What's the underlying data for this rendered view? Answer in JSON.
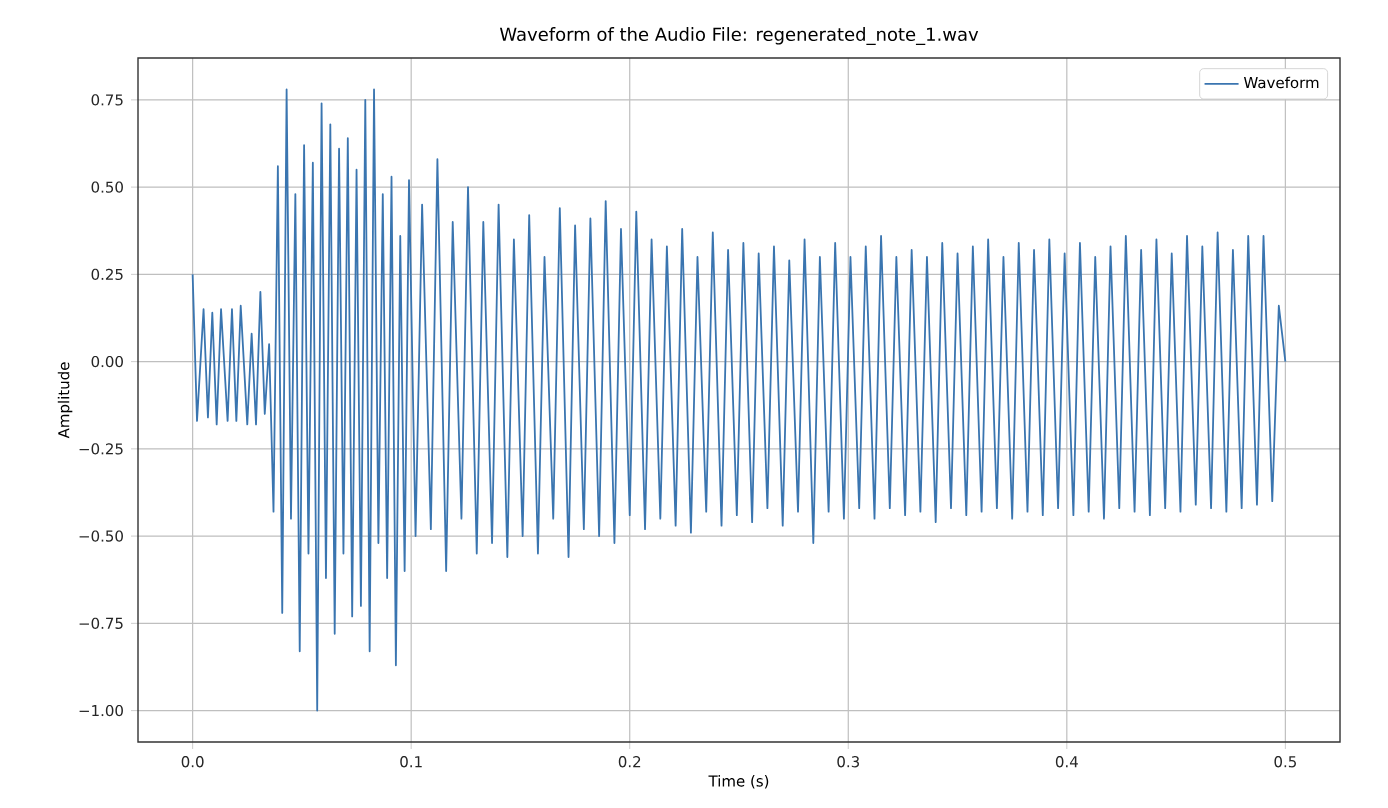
{
  "chart_data": {
    "type": "line",
    "title": "Waveform of the Audio File: regenerated_note_1.wav",
    "xlabel": "Time (s)",
    "ylabel": "Amplitude",
    "series": [
      {
        "name": "Waveform",
        "color": "#3a75b0",
        "x": [
          0.0,
          0.002,
          0.005,
          0.007,
          0.009,
          0.011,
          0.013,
          0.016,
          0.018,
          0.02,
          0.022,
          0.025,
          0.027,
          0.029,
          0.031,
          0.033,
          0.035,
          0.037,
          0.039,
          0.041,
          0.043,
          0.045,
          0.047,
          0.049,
          0.051,
          0.053,
          0.055,
          0.057,
          0.059,
          0.061,
          0.063,
          0.065,
          0.067,
          0.069,
          0.071,
          0.073,
          0.075,
          0.077,
          0.079,
          0.081,
          0.083,
          0.085,
          0.087,
          0.089,
          0.091,
          0.093,
          0.095,
          0.097,
          0.099,
          0.102,
          0.105,
          0.109,
          0.112,
          0.116,
          0.119,
          0.123,
          0.126,
          0.13,
          0.133,
          0.137,
          0.14,
          0.144,
          0.147,
          0.151,
          0.154,
          0.158,
          0.161,
          0.165,
          0.168,
          0.172,
          0.175,
          0.179,
          0.182,
          0.186,
          0.189,
          0.193,
          0.196,
          0.2,
          0.203,
          0.207,
          0.21,
          0.214,
          0.217,
          0.221,
          0.224,
          0.228,
          0.231,
          0.235,
          0.238,
          0.242,
          0.245,
          0.249,
          0.252,
          0.256,
          0.259,
          0.263,
          0.266,
          0.27,
          0.273,
          0.277,
          0.28,
          0.284,
          0.287,
          0.291,
          0.294,
          0.298,
          0.301,
          0.305,
          0.308,
          0.312,
          0.315,
          0.319,
          0.322,
          0.326,
          0.329,
          0.333,
          0.336,
          0.34,
          0.343,
          0.347,
          0.35,
          0.354,
          0.357,
          0.361,
          0.364,
          0.368,
          0.371,
          0.375,
          0.378,
          0.382,
          0.385,
          0.389,
          0.392,
          0.396,
          0.399,
          0.403,
          0.406,
          0.41,
          0.413,
          0.417,
          0.42,
          0.424,
          0.427,
          0.431,
          0.434,
          0.438,
          0.441,
          0.445,
          0.448,
          0.452,
          0.455,
          0.459,
          0.462,
          0.466,
          0.469,
          0.473,
          0.476,
          0.48,
          0.483,
          0.487,
          0.49,
          0.494,
          0.497,
          0.5
        ],
        "values": [
          0.25,
          -0.17,
          0.15,
          -0.16,
          0.14,
          -0.18,
          0.15,
          -0.17,
          0.15,
          -0.17,
          0.16,
          -0.18,
          0.08,
          -0.18,
          0.2,
          -0.15,
          0.05,
          -0.43,
          0.56,
          -0.72,
          0.78,
          -0.45,
          0.48,
          -0.83,
          0.62,
          -0.55,
          0.57,
          -1.0,
          0.74,
          -0.62,
          0.68,
          -0.78,
          0.61,
          -0.55,
          0.64,
          -0.73,
          0.55,
          -0.7,
          0.75,
          -0.83,
          0.78,
          -0.52,
          0.48,
          -0.62,
          0.53,
          -0.87,
          0.36,
          -0.6,
          0.52,
          -0.5,
          0.45,
          -0.48,
          0.58,
          -0.6,
          0.4,
          -0.45,
          0.5,
          -0.55,
          0.4,
          -0.52,
          0.45,
          -0.56,
          0.35,
          -0.5,
          0.42,
          -0.55,
          0.3,
          -0.45,
          0.44,
          -0.56,
          0.39,
          -0.48,
          0.41,
          -0.5,
          0.46,
          -0.52,
          0.38,
          -0.44,
          0.43,
          -0.48,
          0.35,
          -0.45,
          0.33,
          -0.47,
          0.38,
          -0.49,
          0.3,
          -0.43,
          0.37,
          -0.47,
          0.32,
          -0.44,
          0.34,
          -0.46,
          0.31,
          -0.42,
          0.33,
          -0.47,
          0.29,
          -0.43,
          0.35,
          -0.52,
          0.3,
          -0.43,
          0.34,
          -0.45,
          0.3,
          -0.42,
          0.33,
          -0.45,
          0.36,
          -0.42,
          0.3,
          -0.44,
          0.32,
          -0.43,
          0.3,
          -0.46,
          0.34,
          -0.42,
          0.31,
          -0.44,
          0.33,
          -0.43,
          0.35,
          -0.42,
          0.3,
          -0.45,
          0.34,
          -0.43,
          0.32,
          -0.44,
          0.35,
          -0.42,
          0.31,
          -0.44,
          0.34,
          -0.43,
          0.3,
          -0.45,
          0.33,
          -0.42,
          0.36,
          -0.43,
          0.32,
          -0.44,
          0.35,
          -0.42,
          0.31,
          -0.43,
          0.36,
          -0.41,
          0.33,
          -0.42,
          0.37,
          -0.43,
          0.32,
          -0.42,
          0.36,
          -0.41,
          0.36,
          -0.4,
          0.16,
          0.0
        ]
      }
    ],
    "xlim": [
      -0.025,
      0.525
    ],
    "ylim": [
      -1.09,
      0.87
    ],
    "xticks": [
      {
        "value": 0,
        "label": "0.0"
      },
      0.1,
      0.2,
      0.3,
      0.4,
      0.5
    ],
    "yticks": [
      {
        "value": -1,
        "label": "−1.00"
      },
      {
        "value": -0.75,
        "label": "−0.75"
      },
      {
        "value": -0.5,
        "label": "−0.50"
      },
      {
        "value": -0.25,
        "label": "−0.25"
      },
      {
        "value": 0,
        "label": "0.00"
      },
      {
        "value": 0.25,
        "label": "0.25"
      },
      {
        "value": 0.5,
        "label": "0.50"
      },
      {
        "value": 0.75,
        "label": "0.75"
      }
    ],
    "grid": true,
    "legend": "top right",
    "marker": "none",
    "line_style": "solid"
  }
}
